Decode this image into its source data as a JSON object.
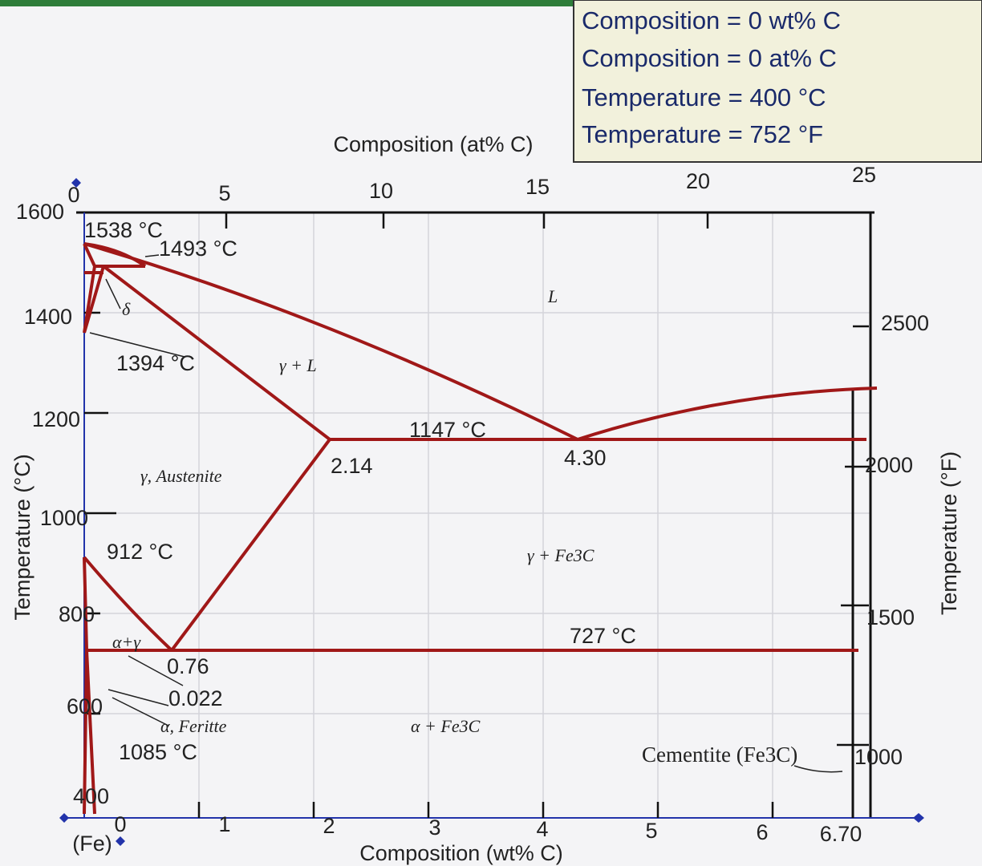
{
  "info_box": {
    "lines": [
      "Composition = 0 wt% C",
      "Composition = 0 at% C",
      "Temperature = 400 °C",
      "Temperature = 752 °F"
    ]
  },
  "top_axis": {
    "title": "Composition (at% C)",
    "ticks": [
      "0",
      "5",
      "10",
      "15",
      "20",
      "25"
    ]
  },
  "bottom_axis": {
    "title": "Composition (wt% C)",
    "ticks": [
      "0",
      "1",
      "2",
      "3",
      "4",
      "5",
      "6",
      "6.70"
    ],
    "origin_label": "(Fe)"
  },
  "left_axis": {
    "title": "Temperature (°C)",
    "ticks": [
      "1600",
      "1400",
      "1200",
      "1000",
      "800",
      "600",
      "400"
    ]
  },
  "right_axis": {
    "title": "Temperature (°F)",
    "ticks": [
      "2500",
      "2000",
      "1500",
      "1000"
    ]
  },
  "annotations": [
    "1538 °C",
    "1493 °C",
    "δ",
    "1394 °C",
    "γ + L",
    "L",
    "1147 °C",
    "2.14",
    "4.30",
    "γ, Austenite",
    "912 °C",
    "γ + Fe3C",
    "727 °C",
    "α+γ",
    "0.76",
    "0.022",
    "α, Feritte",
    "1085 °C",
    "α + Fe3C",
    "Cementite (Fe3C)"
  ]
}
